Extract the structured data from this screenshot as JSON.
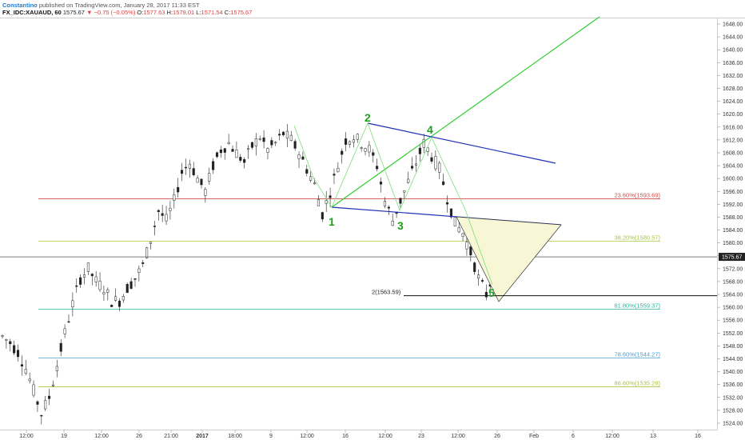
{
  "header": {
    "author": "Constantino",
    "published_text": "published on TradingView.com, January 28, 2017 11:33 EST",
    "symbol": "FX_IDC:XAUAUD, 60",
    "last": "1575.67",
    "change_arrow": "▼",
    "change": "−0.75 (−0.05%)",
    "o_label": "O:",
    "o_value": "1577.63",
    "h_label": "H:",
    "h_value": "1579.01",
    "l_label": "L:",
    "l_value": "1571.54",
    "c_label": "C:",
    "c_value": "1575.67"
  },
  "chart_data": {
    "type": "candlestick",
    "symbol": "FX_IDC:XAUAUD",
    "interval": "60",
    "ylim": [
      1522,
      1650
    ],
    "ytick_values": [
      1524,
      1528,
      1532,
      1536,
      1540,
      1544,
      1548,
      1552,
      1556,
      1560,
      1564,
      1568,
      1572,
      1576,
      1580,
      1584,
      1588,
      1592,
      1596,
      1600,
      1604,
      1608,
      1612,
      1616,
      1620,
      1624,
      1628,
      1632,
      1636,
      1640,
      1644,
      1648
    ],
    "ytick_labels": [
      "1524.00",
      "1528.00",
      "1532.00",
      "1536.00",
      "1540.00",
      "1544.00",
      "1548.00",
      "1552.00",
      "1556.00",
      "1560.00",
      "1564.00",
      "1568.00",
      "1572.00",
      "1576.00",
      "1580.00",
      "1584.00",
      "1588.00",
      "1592.00",
      "1596.00",
      "1600.00",
      "1604.00",
      "1608.00",
      "1612.00",
      "1616.00",
      "1620.00",
      "1624.00",
      "1628.00",
      "1632.00",
      "1636.00",
      "1640.00",
      "1644.00",
      "1648.00"
    ],
    "xtick_labels": [
      "12:00",
      "19",
      "12:00",
      "26",
      "21:00",
      "2017",
      "18:00",
      "9",
      "12:00",
      "16",
      "12:00",
      "23",
      "12:00",
      "26",
      "Feb",
      "6",
      "12:00",
      "13",
      "16"
    ],
    "last_price": "1575.67",
    "grid": false,
    "fib_levels": [
      {
        "label": "23.60%(1593.69)",
        "price": 1593.69,
        "color": "#d04b4b"
      },
      {
        "label": "38.20%(1580.57)",
        "price": 1580.57,
        "color": "#a7c540"
      },
      {
        "label": "61.80%(1559.37)",
        "price": 1559.37,
        "color": "#26b59a"
      },
      {
        "label": "78.60%(1544.27)",
        "price": 1544.27,
        "color": "#4aa0d8"
      },
      {
        "label": "86.60%(1535.28)",
        "price": 1535.28,
        "color": "#a7c540"
      }
    ],
    "extension_label": "2(1563.59)",
    "extension_price": 1563.59,
    "wave_labels": [
      "1",
      "2",
      "3",
      "4",
      "5"
    ],
    "price_path": [
      [
        0,
        1551
      ],
      [
        2,
        1549
      ],
      [
        4,
        1546
      ],
      [
        6,
        1541
      ],
      [
        8,
        1534
      ],
      [
        10,
        1527
      ],
      [
        12,
        1532
      ],
      [
        14,
        1542
      ],
      [
        16,
        1552
      ],
      [
        18,
        1561
      ],
      [
        20,
        1569
      ],
      [
        22,
        1572
      ],
      [
        24,
        1568
      ],
      [
        26,
        1566
      ],
      [
        28,
        1562
      ],
      [
        30,
        1562
      ],
      [
        32,
        1566
      ],
      [
        34,
        1569
      ],
      [
        36,
        1573
      ],
      [
        38,
        1581
      ],
      [
        40,
        1590
      ],
      [
        42,
        1587
      ],
      [
        44,
        1593
      ],
      [
        46,
        1602
      ],
      [
        48,
        1605
      ],
      [
        50,
        1600
      ],
      [
        52,
        1596
      ],
      [
        54,
        1604
      ],
      [
        56,
        1609
      ],
      [
        58,
        1611
      ],
      [
        60,
        1608
      ],
      [
        62,
        1605
      ],
      [
        64,
        1610
      ],
      [
        66,
        1613
      ],
      [
        68,
        1609
      ],
      [
        70,
        1611
      ],
      [
        72,
        1614
      ],
      [
        74,
        1612
      ],
      [
        76,
        1608
      ],
      [
        78,
        1603
      ],
      [
        80,
        1598
      ],
      [
        82,
        1589
      ],
      [
        84,
        1596
      ],
      [
        86,
        1604
      ],
      [
        88,
        1612
      ],
      [
        90,
        1613
      ],
      [
        92,
        1611
      ],
      [
        94,
        1609
      ],
      [
        96,
        1604
      ],
      [
        98,
        1593
      ],
      [
        100,
        1587
      ],
      [
        102,
        1593
      ],
      [
        104,
        1599
      ],
      [
        106,
        1605
      ],
      [
        108,
        1611
      ],
      [
        110,
        1607
      ],
      [
        112,
        1603
      ],
      [
        114,
        1594
      ],
      [
        116,
        1586
      ],
      [
        118,
        1583
      ],
      [
        120,
        1577
      ],
      [
        122,
        1569
      ],
      [
        124,
        1564
      ],
      [
        126,
        1571
      ],
      [
        127,
        1576
      ]
    ]
  }
}
